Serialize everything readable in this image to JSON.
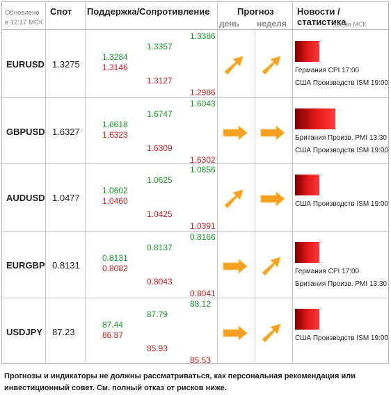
{
  "header": {
    "updated_line1": "Обновлено",
    "updated_line2": "в 12:17 МСК",
    "spot": "Спот",
    "support_resistance": "Поддержка/Сопротивление",
    "forecast": "Прогноз",
    "day": "день",
    "week": "неделя",
    "news": "Новости / статистика",
    "time_label": "время МСК"
  },
  "rows": [
    {
      "pair": "EURUSD",
      "spot": "1.3275",
      "s1g": "1.3284",
      "s1r": "1.3146",
      "s2g": "1.3357",
      "s2r": "1.3127",
      "s3g": "1.3386",
      "s3r": "1.2986",
      "day_dir": "up",
      "week_dir": "up",
      "bar_width": 0.36,
      "news": [
        "Германия CPI 17:00",
        "США Производств ISM 19:00"
      ]
    },
    {
      "pair": "GBPUSD",
      "spot": "1.6327",
      "s1g": "1.6618",
      "s1r": "1.6323",
      "s2g": "1.6747",
      "s2r": "1.6309",
      "s3g": "1.6043",
      "s3r": "1.6302",
      "day_dir": "right",
      "week_dir": "right",
      "bar_width": 0.6,
      "news": [
        "Британия Произв. PMI 13:30",
        "США Производств ISM 19:00"
      ]
    },
    {
      "pair": "AUDUSD",
      "spot": "1.0477",
      "s1g": "1.0602",
      "s1r": "1.0460",
      "s2g": "1.0625",
      "s2r": "1.0425",
      "s3g": "1.0856",
      "s3r": "1.0391",
      "day_dir": "up",
      "week_dir": "right",
      "bar_width": 0.36,
      "news": [
        "США Производств ISM 19:00"
      ]
    },
    {
      "pair": "EURGBP",
      "spot": "0.8131",
      "s1g": "0.8131",
      "s1r": "0.8082",
      "s2g": "0.8137",
      "s2r": "0.8043",
      "s3g": "0.8166",
      "s3r": "0.8041",
      "day_dir": "right",
      "week_dir": "up",
      "bar_width": 0.36,
      "news": [
        "Германия CPI 17:00",
        "Британия Произв. PMI 13:30"
      ]
    },
    {
      "pair": "USDJPY",
      "spot": "87.23",
      "s1g": "87.44",
      "s1r": "86.87",
      "s2g": "87.79",
      "s2r": "85.93",
      "s3g": "88.12",
      "s3r": "85.53",
      "day_dir": "right",
      "week_dir": "up",
      "bar_width": 0.36,
      "news": [
        "США Производств ISM 19:00"
      ]
    }
  ],
  "footer": "Прогнозы и индикаторы не должны рассматриваться, как персональная рекомендация или инвестиционный совет. См. полный отказ от рисков ниже.",
  "colors": {
    "support": "#1c9a2a",
    "resistance": "#d41f1f",
    "arrow": "#f5a020",
    "news_bar": "#e61b1b"
  }
}
